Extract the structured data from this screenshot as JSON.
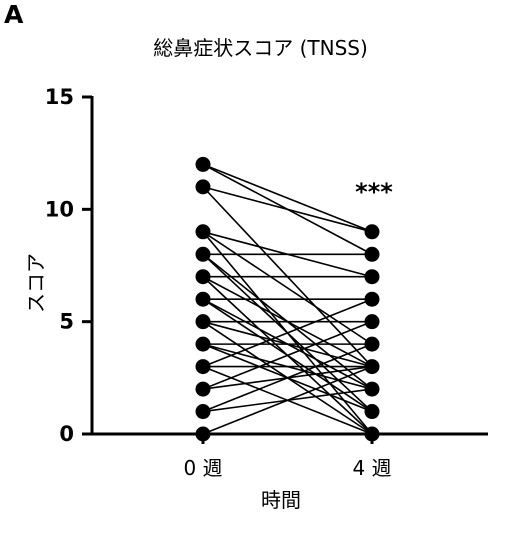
{
  "figure": {
    "panel_label": "A"
  },
  "chart_data": {
    "type": "line",
    "title": "総鼻症状スコア (TNSS)",
    "xlabel": "時間",
    "ylabel": "スコア",
    "categories": [
      "0 週",
      "4 週"
    ],
    "ylim": [
      0,
      15
    ],
    "yticks": [
      0,
      5,
      10,
      15
    ],
    "annotation": "***",
    "paired_values": [
      [
        12,
        9
      ],
      [
        12,
        8
      ],
      [
        11,
        9
      ],
      [
        11,
        3
      ],
      [
        9,
        0
      ],
      [
        9,
        7
      ],
      [
        9,
        4
      ],
      [
        8,
        8
      ],
      [
        8,
        2
      ],
      [
        8,
        1
      ],
      [
        7,
        7
      ],
      [
        7,
        3
      ],
      [
        7,
        0
      ],
      [
        6,
        6
      ],
      [
        6,
        2
      ],
      [
        6,
        1
      ],
      [
        5,
        5
      ],
      [
        5,
        3
      ],
      [
        5,
        0
      ],
      [
        4,
        4
      ],
      [
        4,
        2
      ],
      [
        4,
        1
      ],
      [
        3,
        6
      ],
      [
        3,
        3
      ],
      [
        3,
        0
      ],
      [
        2,
        5
      ],
      [
        2,
        3
      ],
      [
        1,
        4
      ],
      [
        1,
        2
      ],
      [
        0,
        3
      ]
    ],
    "marker_color": "#000000",
    "line_color": "#000000"
  }
}
